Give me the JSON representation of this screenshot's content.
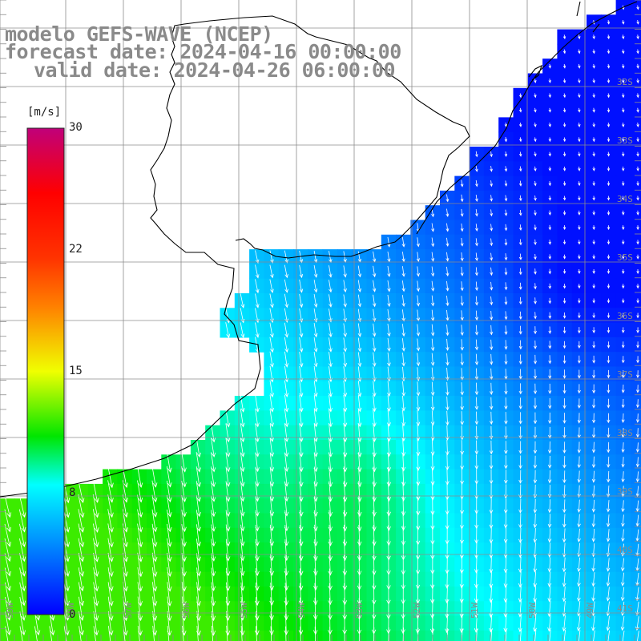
{
  "title": {
    "model": "modelo GEFS-WAVE (NCEP)",
    "forecast": "forecast date: 2024-04-16 00:00:00",
    "valid": "valid date: 2024-04-26 06:00:00"
  },
  "colorbar": {
    "unit": "[m/s]",
    "ticks": [
      {
        "label": "30",
        "value": 30
      },
      {
        "label": "22",
        "value": 22
      },
      {
        "label": "15",
        "value": 15
      },
      {
        "label": "8",
        "value": 8
      },
      {
        "label": "0",
        "value": 0
      }
    ],
    "stops": [
      {
        "value": 0,
        "color": "#0000ff"
      },
      {
        "value": 4,
        "color": "#0080ff"
      },
      {
        "value": 8,
        "color": "#00ffff"
      },
      {
        "value": 11,
        "color": "#00e600"
      },
      {
        "value": 15,
        "color": "#f0ff00"
      },
      {
        "value": 19,
        "color": "#ff8000"
      },
      {
        "value": 22,
        "color": "#ff3300"
      },
      {
        "value": 26,
        "color": "#ff0000"
      },
      {
        "value": 30,
        "color": "#c0007a"
      }
    ]
  },
  "lat_labels": [
    "32S",
    "33S",
    "34S",
    "35S",
    "36S",
    "37S",
    "38S",
    "39S",
    "40S",
    "41S"
  ],
  "lon_labels": [
    "59W",
    "58W",
    "57W",
    "56W",
    "55W",
    "54W",
    "53W",
    "52W",
    "51W",
    "50W",
    "49W"
  ],
  "colors": {
    "grid": "#8c8c8c",
    "coast": "#000000",
    "land": "#ffffff",
    "arrow": "#ffffff",
    "label": "#8a8a8a"
  }
}
